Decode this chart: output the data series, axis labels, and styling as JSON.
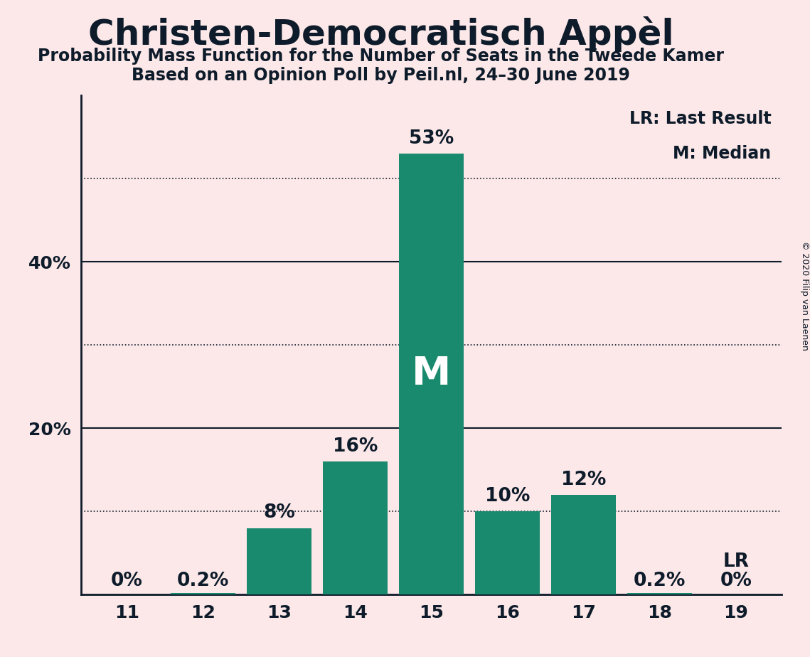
{
  "title": "Christen-Democratisch Appèl",
  "subtitle1": "Probability Mass Function for the Number of Seats in the Tweede Kamer",
  "subtitle2": "Based on an Opinion Poll by Peil.nl, 24–30 June 2019",
  "copyright": "© 2020 Filip van Laenen",
  "categories": [
    11,
    12,
    13,
    14,
    15,
    16,
    17,
    18,
    19
  ],
  "values": [
    0.0,
    0.2,
    8.0,
    16.0,
    53.0,
    10.0,
    12.0,
    0.2,
    0.0
  ],
  "bar_color": "#1a8a6e",
  "background_color": "#fce8e8",
  "label_color": "#0d1b2a",
  "median_bar": 15,
  "lr_bar": 19,
  "solid_gridlines": [
    20,
    40
  ],
  "dotted_gridlines": [
    10,
    30,
    50
  ],
  "ytick_positions": [
    20,
    40
  ],
  "ytick_labels": [
    "20%",
    "40%"
  ],
  "legend_lr": "LR: Last Result",
  "legend_m": "M: Median",
  "bar_labels": [
    "0%",
    "0.2%",
    "8%",
    "16%",
    "53%",
    "10%",
    "12%",
    "0.2%",
    "0%"
  ],
  "title_fontsize": 36,
  "subtitle_fontsize": 17,
  "tick_fontsize": 18,
  "bar_label_fontsize": 19,
  "legend_fontsize": 17,
  "m_fontsize": 40,
  "lr_fontsize": 19,
  "copyright_fontsize": 9
}
